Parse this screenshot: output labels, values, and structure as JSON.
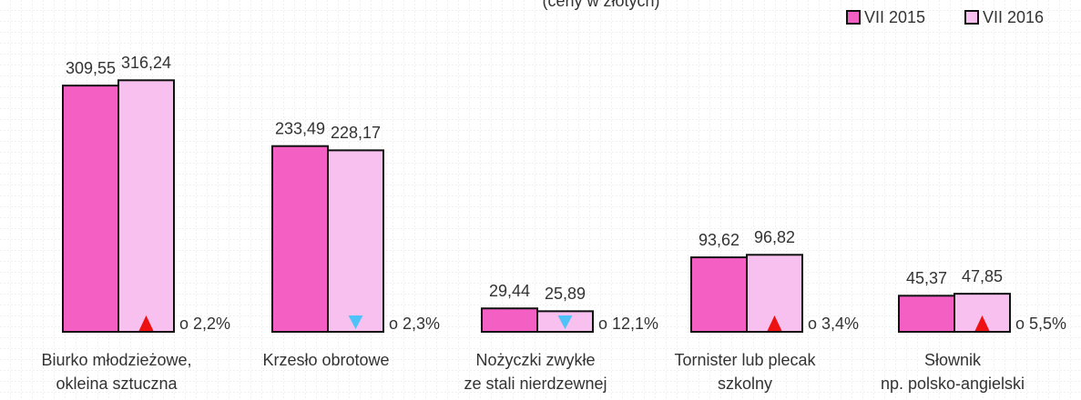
{
  "chart_data": {
    "type": "bar",
    "subtitle": "(ceny w złotych)",
    "categories": [
      [
        "Biurko młodzieżowe,",
        "okleina sztuczna"
      ],
      [
        "Krzesło obrotowe"
      ],
      [
        "Nożyczki zwykłe",
        "ze stali nierdzewnej"
      ],
      [
        "Tornister lub plecak",
        "szkolny"
      ],
      [
        "Słownik",
        "np. polsko-angielski"
      ]
    ],
    "series": [
      {
        "name": "VII 2015",
        "color": "#f35fc3",
        "values": [
          309.55,
          233.49,
          29.44,
          93.62,
          45.37
        ],
        "value_labels": [
          "309,55",
          "233,49",
          "29,44",
          "93,62",
          "45,37"
        ]
      },
      {
        "name": "VII 2016",
        "color": "#f7c0ef",
        "values": [
          316.24,
          228.17,
          25.89,
          96.82,
          47.85
        ],
        "value_labels": [
          "316,24",
          "228,17",
          "25,89",
          "96,82",
          "47,85"
        ]
      }
    ],
    "annotations": [
      "o 2,2%",
      "o 2,3%",
      "o 12,1%",
      "o 3,4%",
      "o 5,5%"
    ],
    "change_direction": [
      "up",
      "down",
      "down",
      "up",
      "up"
    ],
    "arrow_colors": {
      "up": "#ee1111",
      "down": "#4fc3f7"
    },
    "ylim": [
      0,
      400
    ],
    "legend": "top-right"
  }
}
